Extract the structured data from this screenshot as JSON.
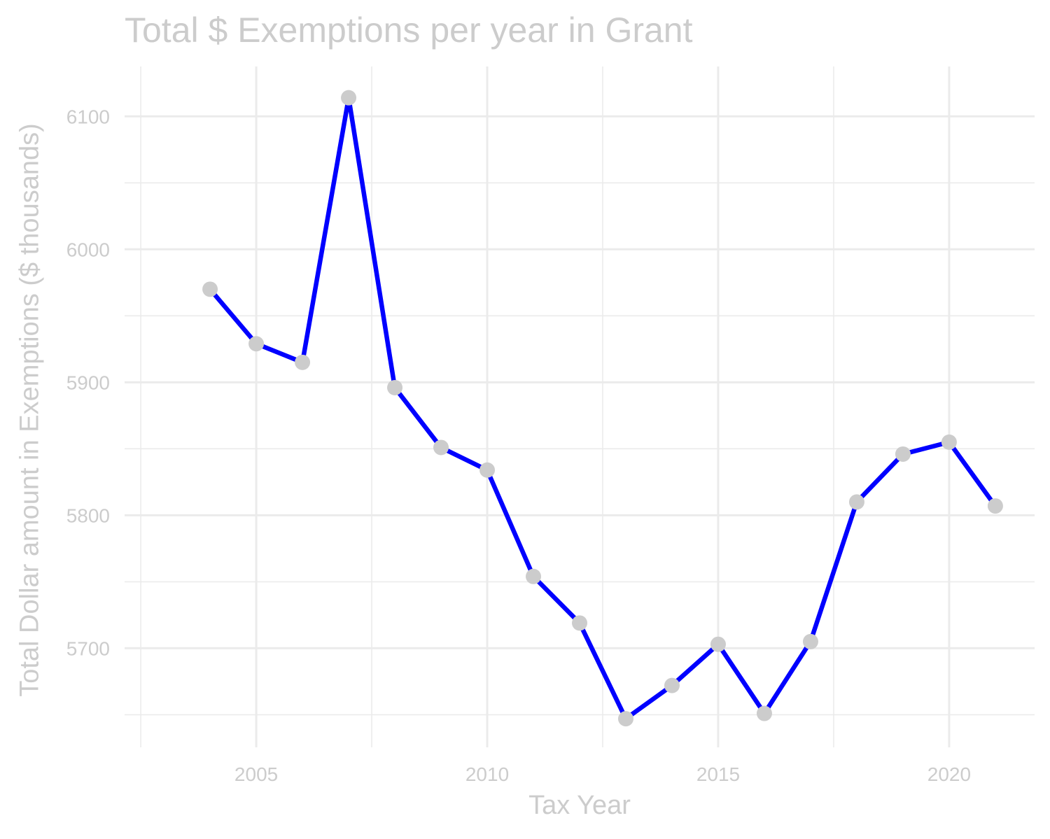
{
  "chart_data": {
    "type": "line",
    "title": "Total $ Exemptions per year in Grant",
    "xlabel": "Tax Year",
    "ylabel": "Total Dollar amount in Exemptions ($ thousands)",
    "x": [
      2004,
      2005,
      2006,
      2007,
      2008,
      2009,
      2010,
      2011,
      2012,
      2013,
      2014,
      2015,
      2016,
      2017,
      2018,
      2019,
      2020,
      2021
    ],
    "series": [
      {
        "values": [
          5970,
          5929,
          5915,
          6114,
          5896,
          5851,
          5834,
          5754,
          5719,
          5647,
          5672,
          5703,
          5651,
          5705,
          5810,
          5846,
          5855,
          5807
        ]
      }
    ],
    "xlim": [
      2002.15,
      2021.85
    ],
    "ylim": [
      5625.5,
      6137.5
    ],
    "xticks": [
      2005,
      2010,
      2015,
      2020
    ],
    "yticks": [
      5700,
      5800,
      5900,
      6000,
      6100
    ],
    "grid": true,
    "line_color": "#0000ff",
    "point_color": "#cccccc",
    "text_color": "#cccccc",
    "grid_color": "#ebebeb"
  }
}
